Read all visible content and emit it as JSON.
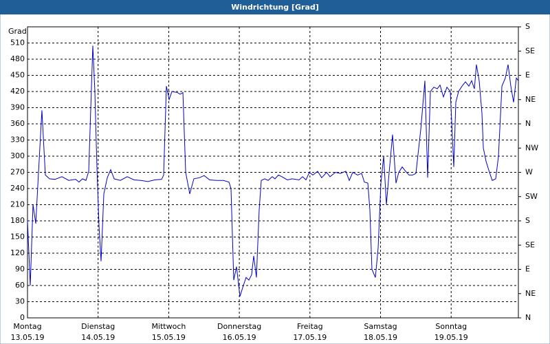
{
  "chart_data": {
    "type": "line",
    "title": "Windrichtung [Grad]",
    "y_label": "Grad",
    "xlim": [
      0,
      6.952
    ],
    "xticks": [
      {
        "value": 0,
        "label": "Montag",
        "date": "13.05.19"
      },
      {
        "value": 1,
        "label": "Dienstag",
        "date": "14.05.19"
      },
      {
        "value": 2,
        "label": "Mittwoch",
        "date": "15.05.19"
      },
      {
        "value": 3,
        "label": "Donnerstag",
        "date": "16.05.19"
      },
      {
        "value": 4,
        "label": "Freitag",
        "date": "17.05.19"
      },
      {
        "value": 5,
        "label": "Samstag",
        "date": "18.05.19"
      },
      {
        "value": 6,
        "label": "Sonntag",
        "date": "19.05.19"
      }
    ],
    "ylim": [
      0,
      540
    ],
    "yticks": [
      0,
      30,
      60,
      90,
      120,
      150,
      180,
      210,
      240,
      270,
      300,
      330,
      360,
      390,
      420,
      450,
      480,
      510
    ],
    "y2lim": [
      0,
      540
    ],
    "y2ticks": [
      {
        "value": 0,
        "label": "N"
      },
      {
        "value": 45,
        "label": "NE"
      },
      {
        "value": 90,
        "label": "E"
      },
      {
        "value": 135,
        "label": "SE"
      },
      {
        "value": 180,
        "label": "S"
      },
      {
        "value": 225,
        "label": "SW"
      },
      {
        "value": 270,
        "label": "W"
      },
      {
        "value": 315,
        "label": "NW"
      },
      {
        "value": 360,
        "label": "N"
      },
      {
        "value": 405,
        "label": "NE"
      },
      {
        "value": 450,
        "label": "E"
      },
      {
        "value": 495,
        "label": "SE"
      },
      {
        "value": 540,
        "label": "S"
      }
    ],
    "grid": true,
    "x": [
      0,
      0.039,
      0.078,
      0.117,
      0.156,
      0.204,
      0.253,
      0.312,
      0.389,
      0.487,
      0.584,
      0.682,
      0.73,
      0.779,
      0.828,
      0.867,
      0.925,
      0.954,
      0.983,
      1.013,
      1.042,
      1.081,
      1.13,
      1.178,
      1.227,
      1.315,
      1.412,
      1.509,
      1.607,
      1.704,
      1.801,
      1.899,
      1.928,
      1.967,
      2.006,
      2.045,
      2.123,
      2.162,
      2.201,
      2.24,
      2.298,
      2.356,
      2.434,
      2.502,
      2.58,
      2.678,
      2.775,
      2.853,
      2.882,
      2.921,
      2.96,
      3.009,
      3.057,
      3.096,
      3.135,
      3.174,
      3.204,
      3.242,
      3.281,
      3.311,
      3.359,
      3.408,
      3.466,
      3.505,
      3.554,
      3.603,
      3.681,
      3.749,
      3.846,
      3.895,
      3.944,
      3.992,
      4.041,
      4.109,
      4.167,
      4.236,
      4.284,
      4.362,
      4.43,
      4.508,
      4.557,
      4.606,
      4.674,
      4.732,
      4.771,
      4.82,
      4.849,
      4.878,
      4.927,
      4.966,
      5.005,
      5.044,
      5.083,
      5.122,
      5.17,
      5.219,
      5.258,
      5.307,
      5.355,
      5.404,
      5.453,
      5.501,
      5.57,
      5.628,
      5.667,
      5.706,
      5.755,
      5.803,
      5.842,
      5.891,
      5.94,
      5.988,
      6.037,
      6.066,
      6.105,
      6.154,
      6.202,
      6.251,
      6.29,
      6.329,
      6.358,
      6.397,
      6.436,
      6.456,
      6.495,
      6.543,
      6.582,
      6.631,
      6.67,
      6.719,
      6.767,
      6.806,
      6.845,
      6.884,
      6.923,
      6.952
    ],
    "series": [
      {
        "color": "#0000c8",
        "values": [
          180,
          60,
          210,
          175,
          270,
          385,
          265,
          258,
          257,
          262,
          255,
          257,
          252,
          258,
          255,
          272,
          505,
          420,
          280,
          170,
          105,
          230,
          260,
          275,
          258,
          255,
          262,
          256,
          255,
          253,
          256,
          257,
          265,
          430,
          405,
          420,
          418,
          415,
          418,
          270,
          230,
          258,
          260,
          264,
          256,
          255,
          255,
          252,
          240,
          70,
          95,
          40,
          60,
          75,
          70,
          80,
          115,
          75,
          200,
          255,
          258,
          255,
          262,
          258,
          265,
          262,
          256,
          258,
          256,
          262,
          256,
          270,
          265,
          272,
          260,
          270,
          262,
          270,
          268,
          272,
          255,
          270,
          265,
          268,
          252,
          250,
          200,
          90,
          75,
          130,
          250,
          300,
          210,
          270,
          340,
          250,
          270,
          280,
          272,
          265,
          265,
          268,
          350,
          440,
          260,
          420,
          428,
          425,
          432,
          410,
          428,
          420,
          280,
          400,
          420,
          430,
          438,
          430,
          440,
          425,
          470,
          440,
          380,
          315,
          290,
          270,
          255,
          258,
          300,
          430,
          445,
          470,
          430,
          400,
          445,
          440
        ]
      }
    ]
  }
}
